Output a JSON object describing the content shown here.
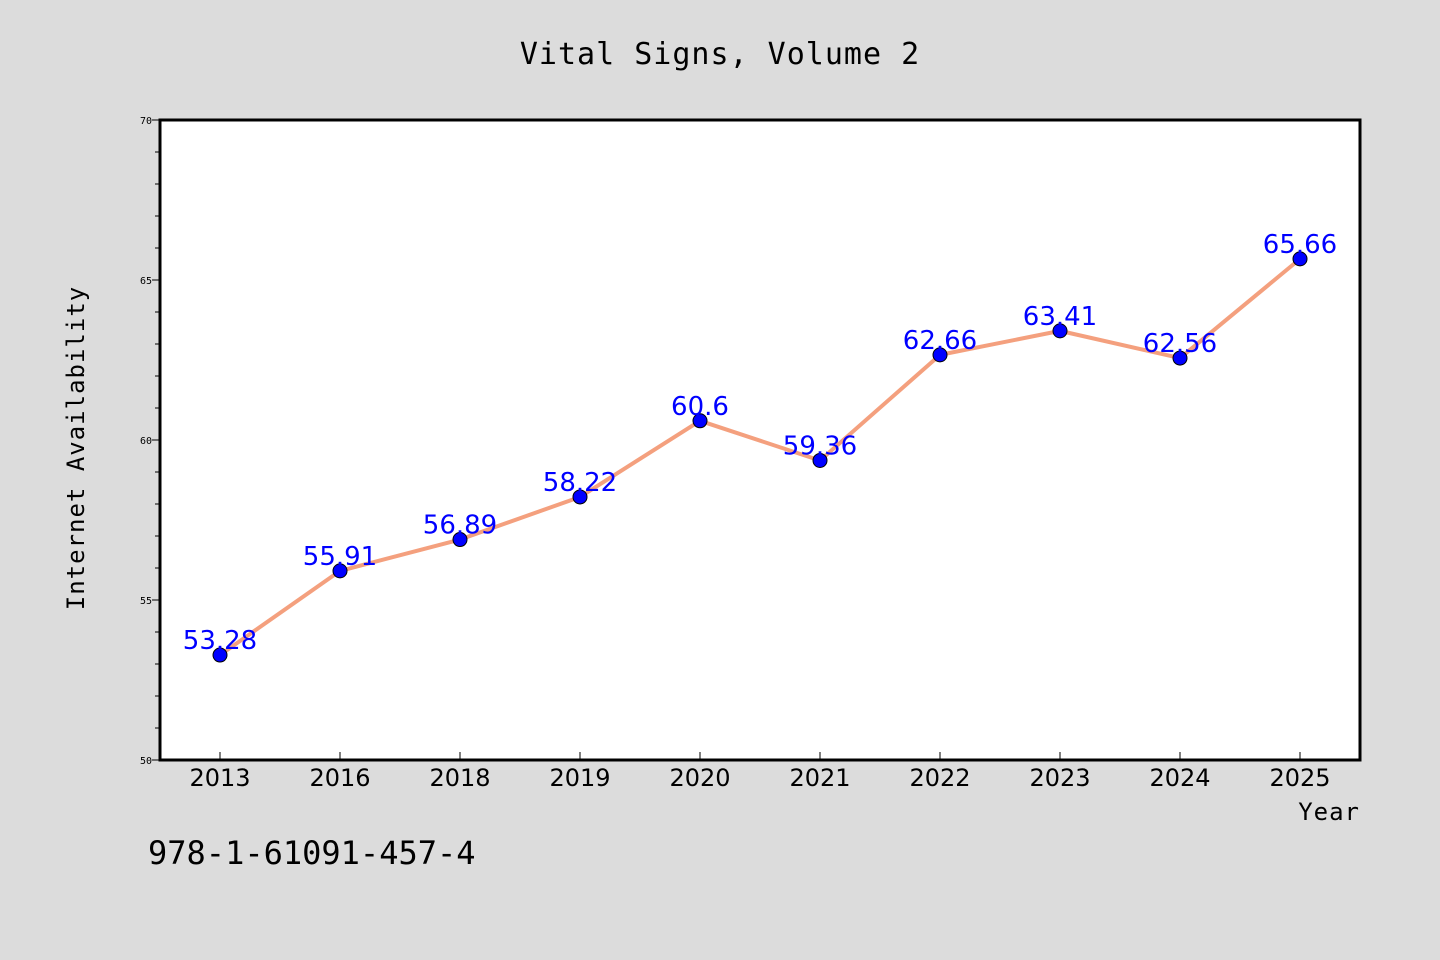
{
  "chart_data": {
    "type": "line",
    "title": "Vital Signs, Volume 2",
    "xlabel": "Year",
    "ylabel": "Internet Availability",
    "categories": [
      "2013",
      "2016",
      "2018",
      "2019",
      "2020",
      "2021",
      "2022",
      "2023",
      "2024",
      "2025"
    ],
    "series": [
      {
        "values": [
          53.28,
          55.91,
          56.89,
          58.22,
          60.6,
          59.36,
          62.66,
          63.41,
          62.56,
          65.66
        ],
        "data_labels": [
          "53.28",
          "55.91",
          "56.89",
          "58.22",
          "60.6",
          "59.36",
          "62.66",
          "63.41",
          "62.56",
          "65.66"
        ],
        "line_color": "#f4a07e",
        "marker_color": "#0000ff"
      }
    ],
    "ylim": [
      50,
      70
    ],
    "yticks": [
      "50",
      "55",
      "60",
      "65",
      "70"
    ],
    "grid": false,
    "legend": "none",
    "colors": {
      "background": "#dcdcdc",
      "plot_background": "#ffffff",
      "data_label": "#0000ff"
    }
  },
  "footer": {
    "isbn": "978-1-61091-457-4"
  }
}
